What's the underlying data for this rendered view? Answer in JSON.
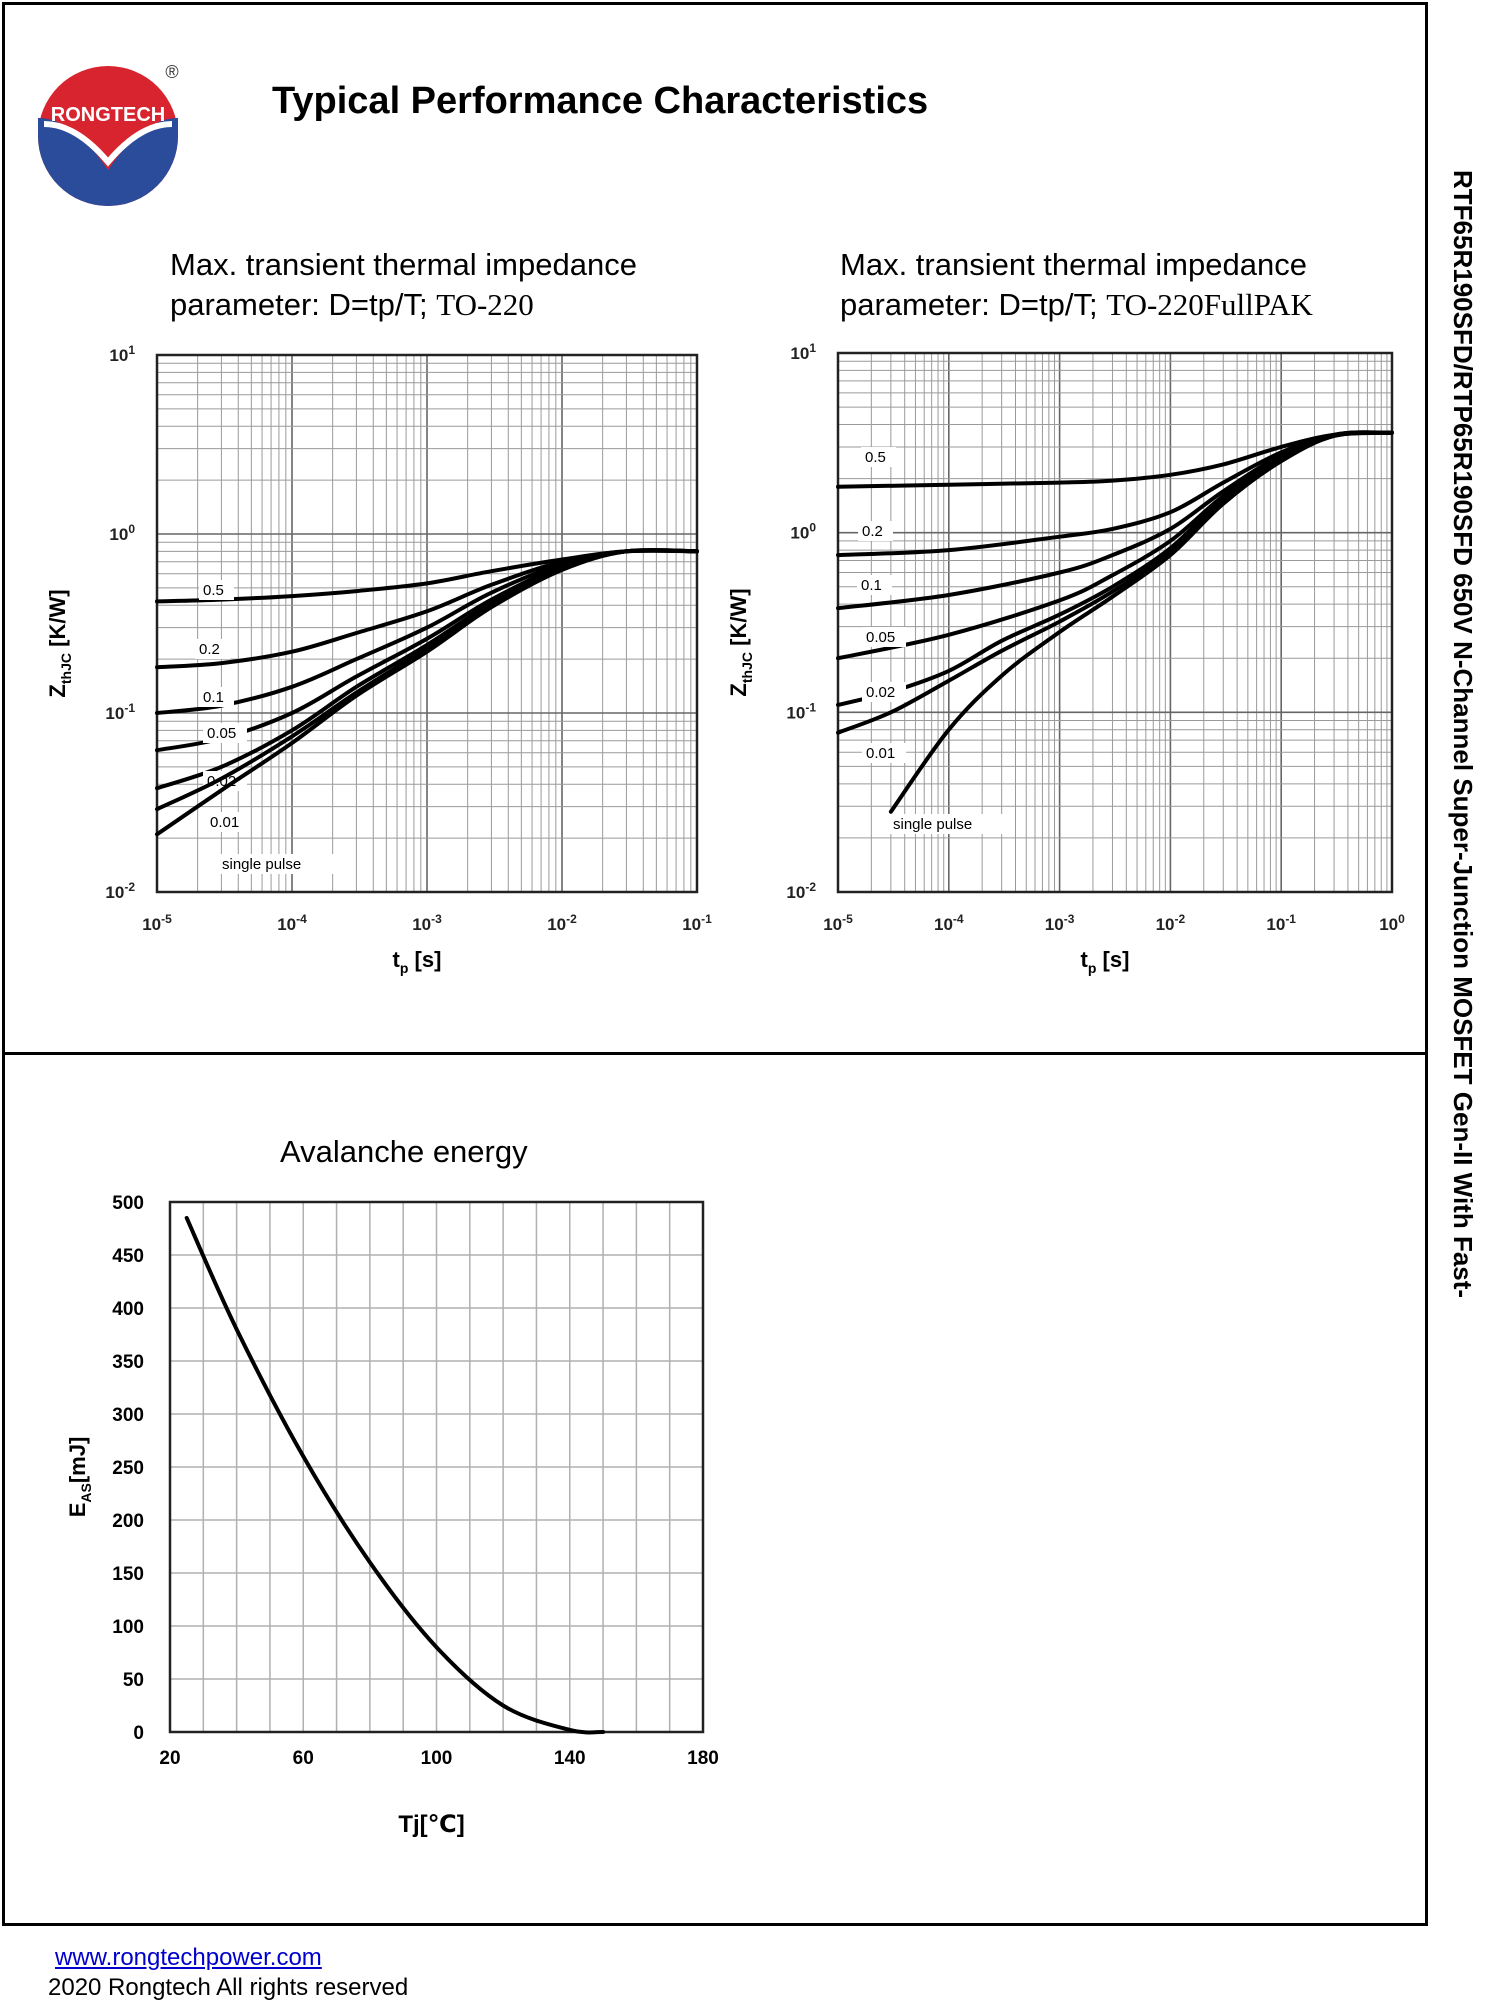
{
  "header": {
    "title": "Typical Performance Characteristics",
    "logo_text": "RONGTECH",
    "registered_mark": "®"
  },
  "side_title": "RTF65R190SFD/RTP65R190SFD 650V N-Channel Super-Junction MOSFET Gen-II With Fast-",
  "footer": {
    "link_text": "www.rongtechpower.com",
    "copyright": "2020 Rongtech All rights reserved"
  },
  "colors": {
    "logo_red": "#d8242e",
    "logo_blue": "#2b4c9b",
    "grid": "#9a9a9a",
    "link": "#0000cc"
  },
  "chart_data": [
    {
      "type": "line",
      "title_line1": "Max. transient thermal impedance",
      "title_line2_prefix": "parameter: D=tp/T; ",
      "title_line2_package": "TO-220",
      "xlabel_main": "t",
      "xlabel_sub": "p",
      "xlabel_unit": " [s]",
      "ylabel_main": "Z",
      "ylabel_sub": "thJC",
      "ylabel_unit": " [K/W]",
      "x_scale": "log",
      "y_scale": "log",
      "xlim": [
        1e-05,
        0.1
      ],
      "ylim": [
        0.01,
        10
      ],
      "x_ticks": [
        {
          "base": "10",
          "exp": "-5"
        },
        {
          "base": "10",
          "exp": "-4"
        },
        {
          "base": "10",
          "exp": "-3"
        },
        {
          "base": "10",
          "exp": "-2"
        },
        {
          "base": "10",
          "exp": "-1"
        }
      ],
      "y_ticks": [
        {
          "base": "10",
          "exp": "1"
        },
        {
          "base": "10",
          "exp": "0"
        },
        {
          "base": "10",
          "exp": "-1"
        },
        {
          "base": "10",
          "exp": "-2"
        }
      ],
      "series": [
        {
          "name": "0.5",
          "x": [
            1e-05,
            3e-05,
            0.0001,
            0.0003,
            0.001,
            0.003,
            0.01,
            0.03,
            0.1
          ],
          "y": [
            0.42,
            0.43,
            0.45,
            0.48,
            0.53,
            0.62,
            0.72,
            0.8,
            0.8
          ]
        },
        {
          "name": "0.2",
          "x": [
            1e-05,
            3e-05,
            0.0001,
            0.0003,
            0.001,
            0.003,
            0.01,
            0.03,
            0.1
          ],
          "y": [
            0.18,
            0.19,
            0.22,
            0.28,
            0.37,
            0.52,
            0.7,
            0.8,
            0.8
          ]
        },
        {
          "name": "0.1",
          "x": [
            1e-05,
            3e-05,
            0.0001,
            0.0003,
            0.001,
            0.003,
            0.01,
            0.03,
            0.1
          ],
          "y": [
            0.1,
            0.11,
            0.14,
            0.2,
            0.3,
            0.47,
            0.68,
            0.8,
            0.8
          ]
        },
        {
          "name": "0.05",
          "x": [
            1e-05,
            3e-05,
            0.0001,
            0.0003,
            0.001,
            0.003,
            0.01,
            0.03,
            0.1
          ],
          "y": [
            0.062,
            0.072,
            0.1,
            0.16,
            0.26,
            0.43,
            0.66,
            0.8,
            0.8
          ]
        },
        {
          "name": "0.02",
          "x": [
            1e-05,
            3e-05,
            0.0001,
            0.0003,
            0.001,
            0.003,
            0.01,
            0.03,
            0.1
          ],
          "y": [
            0.038,
            0.05,
            0.08,
            0.14,
            0.24,
            0.41,
            0.65,
            0.8,
            0.8
          ]
        },
        {
          "name": "0.01",
          "x": [
            1e-05,
            3e-05,
            0.0001,
            0.0003,
            0.001,
            0.003,
            0.01,
            0.03,
            0.1
          ],
          "y": [
            0.029,
            0.043,
            0.074,
            0.13,
            0.23,
            0.4,
            0.64,
            0.8,
            0.8
          ]
        },
        {
          "name": "single pulse",
          "x": [
            1e-05,
            3e-05,
            0.0001,
            0.0003,
            0.001,
            0.003,
            0.01,
            0.03,
            0.1
          ],
          "y": [
            0.021,
            0.037,
            0.068,
            0.125,
            0.22,
            0.39,
            0.63,
            0.8,
            0.8
          ]
        }
      ]
    },
    {
      "type": "line",
      "title_line1": "Max. transient thermal impedance",
      "title_line2_prefix": "parameter: D=tp/T; ",
      "title_line2_package": "TO-220FullPAK",
      "xlabel_main": "t",
      "xlabel_sub": "p",
      "xlabel_unit": " [s]",
      "ylabel_main": "Z",
      "ylabel_sub": "thJC",
      "ylabel_unit": " [K/W]",
      "x_scale": "log",
      "y_scale": "log",
      "xlim": [
        1e-05,
        1
      ],
      "ylim": [
        0.01,
        10
      ],
      "x_ticks": [
        {
          "base": "10",
          "exp": "-5"
        },
        {
          "base": "10",
          "exp": "-4"
        },
        {
          "base": "10",
          "exp": "-3"
        },
        {
          "base": "10",
          "exp": "-2"
        },
        {
          "base": "10",
          "exp": "-1"
        },
        {
          "base": "10",
          "exp": "0"
        }
      ],
      "y_ticks": [
        {
          "base": "10",
          "exp": "1"
        },
        {
          "base": "10",
          "exp": "0"
        },
        {
          "base": "10",
          "exp": "-1"
        },
        {
          "base": "10",
          "exp": "-2"
        }
      ],
      "series": [
        {
          "name": "0.5",
          "x": [
            1e-05,
            0.0001,
            0.001,
            0.003,
            0.01,
            0.03,
            0.1,
            0.3,
            1
          ],
          "y": [
            1.8,
            1.85,
            1.9,
            1.95,
            2.1,
            2.4,
            3.0,
            3.5,
            3.6
          ]
        },
        {
          "name": "0.2",
          "x": [
            1e-05,
            0.0001,
            0.001,
            0.003,
            0.01,
            0.03,
            0.1,
            0.3,
            1
          ],
          "y": [
            0.75,
            0.8,
            0.95,
            1.05,
            1.3,
            1.9,
            2.8,
            3.5,
            3.6
          ]
        },
        {
          "name": "0.1",
          "x": [
            1e-05,
            0.0001,
            0.001,
            0.003,
            0.01,
            0.03,
            0.1,
            0.3,
            1
          ],
          "y": [
            0.38,
            0.45,
            0.6,
            0.75,
            1.05,
            1.7,
            2.7,
            3.5,
            3.6
          ]
        },
        {
          "name": "0.05",
          "x": [
            1e-05,
            0.0001,
            0.001,
            0.003,
            0.01,
            0.03,
            0.1,
            0.3,
            1
          ],
          "y": [
            0.2,
            0.27,
            0.42,
            0.58,
            0.9,
            1.6,
            2.65,
            3.5,
            3.6
          ]
        },
        {
          "name": "0.02",
          "x": [
            1e-05,
            3e-05,
            0.0001,
            0.0003,
            0.001,
            0.003,
            0.01,
            0.03,
            0.1,
            0.3,
            1
          ],
          "y": [
            0.11,
            0.13,
            0.17,
            0.25,
            0.35,
            0.5,
            0.82,
            1.55,
            2.6,
            3.5,
            3.6
          ]
        },
        {
          "name": "0.01",
          "x": [
            1e-05,
            3e-05,
            0.0001,
            0.0003,
            0.001,
            0.003,
            0.01,
            0.03,
            0.1,
            0.3,
            1
          ],
          "y": [
            0.077,
            0.1,
            0.15,
            0.22,
            0.32,
            0.47,
            0.78,
            1.5,
            2.55,
            3.5,
            3.6
          ]
        },
        {
          "name": "single pulse",
          "x": [
            3e-05,
            0.0001,
            0.0003,
            0.001,
            0.003,
            0.01,
            0.03,
            0.1,
            0.3,
            1
          ],
          "y": [
            0.028,
            0.08,
            0.16,
            0.28,
            0.44,
            0.75,
            1.45,
            2.5,
            3.45,
            3.6
          ]
        }
      ]
    },
    {
      "type": "line",
      "title": "Avalanche energy",
      "xlabel": "Tj[℃]",
      "ylabel": "E",
      "ylabel_sub": "AS",
      "ylabel_unit": "[mJ]",
      "x_scale": "linear",
      "y_scale": "linear",
      "xlim": [
        20,
        180
      ],
      "ylim": [
        0,
        500
      ],
      "x_ticks": [
        20,
        60,
        100,
        140,
        180
      ],
      "y_ticks": [
        0,
        50,
        100,
        150,
        200,
        250,
        300,
        350,
        400,
        450,
        500
      ],
      "series": [
        {
          "name": "EAS",
          "x": [
            25,
            40,
            60,
            80,
            100,
            120,
            140,
            150
          ],
          "y": [
            485,
            380,
            260,
            160,
            80,
            25,
            2,
            0
          ]
        }
      ]
    }
  ]
}
